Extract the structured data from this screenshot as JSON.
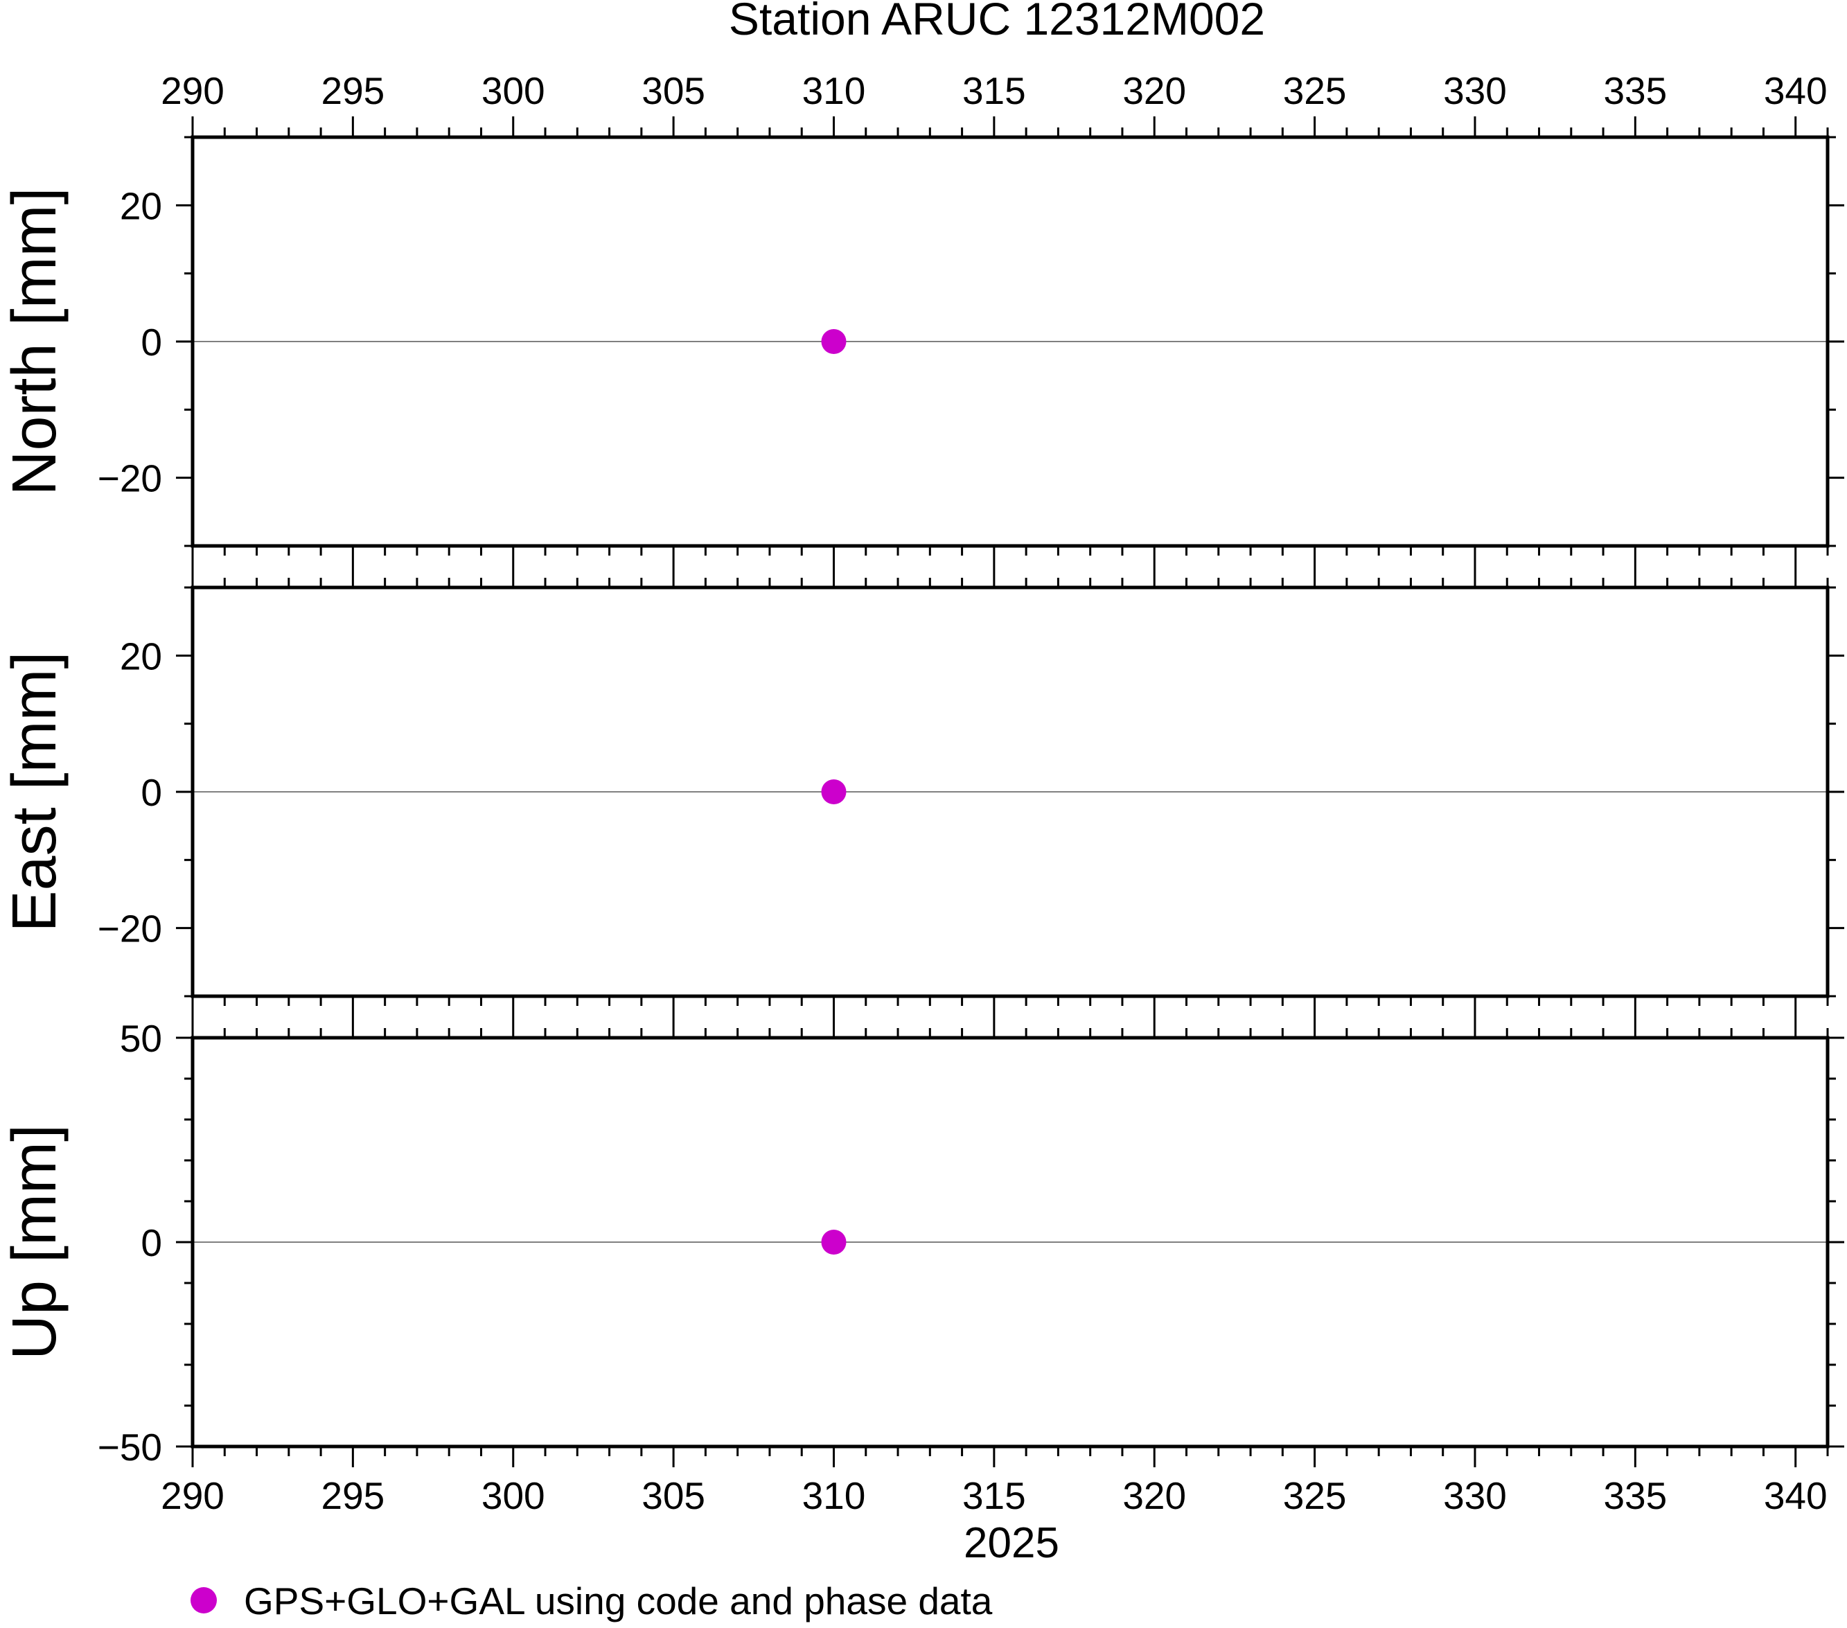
{
  "title": "Station ARUC 12312M002",
  "legend": {
    "label": "GPS+GLO+GAL using code and phase data",
    "position": "bottom-left"
  },
  "colors": {
    "marker": "#cc00cc",
    "frame": "#000000",
    "zero_line": "#808080",
    "background": "#ffffff"
  },
  "chart_data": {
    "type": "scatter",
    "title": "Station ARUC 12312M002",
    "xlabel": "2025",
    "x_ticks": [
      "290",
      "295",
      "300",
      "305",
      "310",
      "315",
      "320",
      "325",
      "330",
      "335",
      "340"
    ],
    "x_tick_values": [
      290,
      295,
      300,
      305,
      310,
      315,
      320,
      325,
      330,
      335,
      340
    ],
    "xlim": [
      290,
      341
    ],
    "grid": false,
    "legend_placement": "bottom-left",
    "panels": [
      {
        "ylabel": "North [mm]",
        "ylim": [
          -30,
          30
        ],
        "y_tick_values": [
          -20,
          0,
          20
        ],
        "y_ticks": [
          "−20",
          "0",
          "20"
        ],
        "zero_line": true,
        "series": [
          {
            "name": "GPS+GLO+GAL using code and phase data",
            "x": [
              310
            ],
            "y": [
              0
            ]
          }
        ]
      },
      {
        "ylabel": "East [mm]",
        "ylim": [
          -30,
          30
        ],
        "y_tick_values": [
          -20,
          0,
          20
        ],
        "y_ticks": [
          "−20",
          "0",
          "20"
        ],
        "zero_line": true,
        "series": [
          {
            "name": "GPS+GLO+GAL using code and phase data",
            "x": [
              310
            ],
            "y": [
              0
            ]
          }
        ]
      },
      {
        "ylabel": "Up [mm]",
        "ylim": [
          -50,
          50
        ],
        "y_tick_values": [
          -50,
          0,
          50
        ],
        "y_ticks": [
          "−50",
          "0",
          "50"
        ],
        "zero_line": true,
        "series": [
          {
            "name": "GPS+GLO+GAL using code and phase data",
            "x": [
              310
            ],
            "y": [
              0
            ]
          }
        ]
      }
    ]
  }
}
